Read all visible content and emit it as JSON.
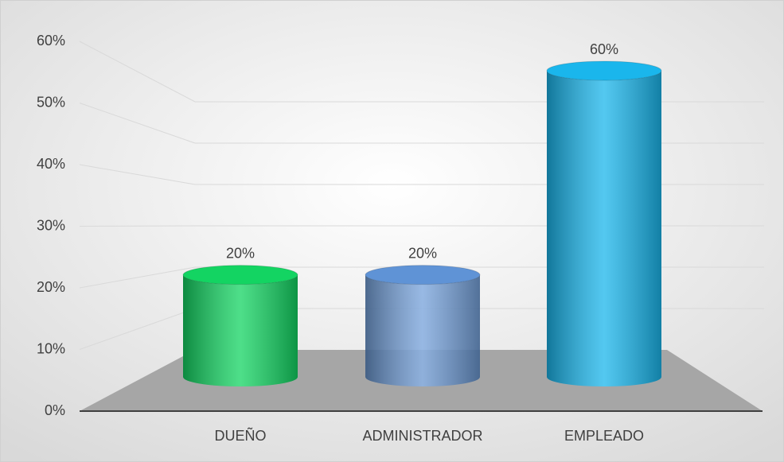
{
  "chart_data": {
    "type": "cylinder",
    "categories": [
      "DUEÑO",
      "ADMINISTRADOR",
      "EMPLEADO"
    ],
    "values": [
      20,
      20,
      60
    ],
    "value_labels": [
      "20%",
      "20%",
      "60%"
    ],
    "colors": [
      "#13d462",
      "#5f93d6",
      "#1ab6ec"
    ],
    "ylim": [
      0,
      60
    ],
    "yticks": [
      {
        "value": 0,
        "label": "0%"
      },
      {
        "value": 10,
        "label": "10%"
      },
      {
        "value": 20,
        "label": "20%"
      },
      {
        "value": 30,
        "label": "30%"
      },
      {
        "value": 40,
        "label": "40%"
      },
      {
        "value": 50,
        "label": "50%"
      },
      {
        "value": 60,
        "label": "60%"
      }
    ],
    "grid": true
  }
}
